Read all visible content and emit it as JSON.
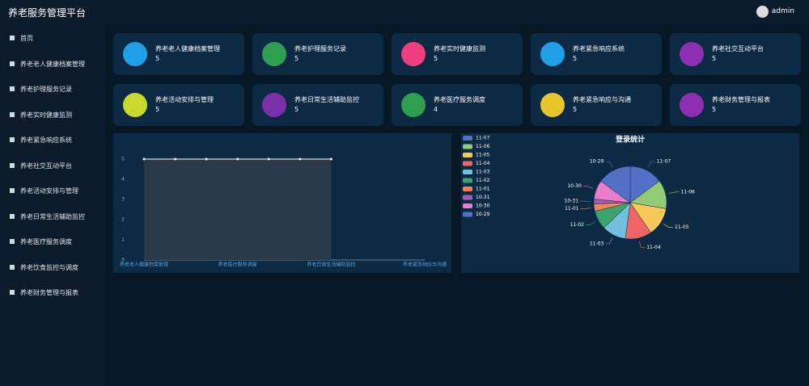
{
  "header": {
    "title": "养老服务管理平台",
    "user": "admin"
  },
  "menu": [
    "首页",
    "养老老人健康档案管理",
    "养老护理服务记录",
    "养老实时健康监测",
    "养老紧急响应系统",
    "养老社交互动平台",
    "养老活动安排与管理",
    "养老日常生活辅助监控",
    "养老医疗服务调度",
    "养老饮食监控与调度",
    "养老财务管理与报表"
  ],
  "cards": [
    {
      "label": "养老老人健康档案管理",
      "value": 5,
      "color": "#1e9fe8"
    },
    {
      "label": "养老护理服务记录",
      "value": 5,
      "color": "#2e9e4f"
    },
    {
      "label": "养老实时健康监测",
      "value": 5,
      "color": "#ef3f7e"
    },
    {
      "label": "养老紧急响应系统",
      "value": 5,
      "color": "#1e9fe8"
    },
    {
      "label": "养老社交互动平台",
      "value": 5,
      "color": "#8e2fb3"
    },
    {
      "label": "养老活动安排与管理",
      "value": 5,
      "color": "#c8d92b"
    },
    {
      "label": "养老日常生活辅助监控",
      "value": 5,
      "color": "#7b2fa8"
    },
    {
      "label": "养老医疗服务调度",
      "value": 4,
      "color": "#2e9e4f"
    },
    {
      "label": "养老紧急响应与沟通",
      "value": 5,
      "color": "#e8c52a"
    },
    {
      "label": "养老财务管理与报表",
      "value": 5,
      "color": "#8e2fb3"
    }
  ],
  "chart_data": [
    {
      "type": "line",
      "categories": [
        "养老老人健康档案管理",
        null,
        null,
        "养老医疗服务调度",
        null,
        null,
        "养老日常生活辅助监控",
        null,
        null,
        "养老紧急响应与沟通"
      ],
      "values": [
        5,
        5,
        5,
        5,
        5,
        5,
        5,
        null,
        null,
        null
      ],
      "color": "#ffffff",
      "ylim": [
        0,
        5
      ],
      "yticks": [
        0,
        1,
        2,
        3,
        4,
        5
      ]
    },
    {
      "type": "pie",
      "title": "登录统计",
      "categories": [
        "11-07",
        "11-06",
        "11-05",
        "11-04",
        "11-03",
        "11-02",
        "11-01",
        "10-31",
        "10-30",
        "10-29"
      ],
      "values": [
        14,
        12,
        12,
        11,
        10,
        8,
        3,
        2,
        8,
        14
      ],
      "colors": [
        "#5470c6",
        "#91cc75",
        "#fac858",
        "#ee6666",
        "#73c0de",
        "#3ba272",
        "#fc8452",
        "#9a60b4",
        "#ea7ccc",
        "#5470c6"
      ],
      "legend": "top-left"
    }
  ]
}
